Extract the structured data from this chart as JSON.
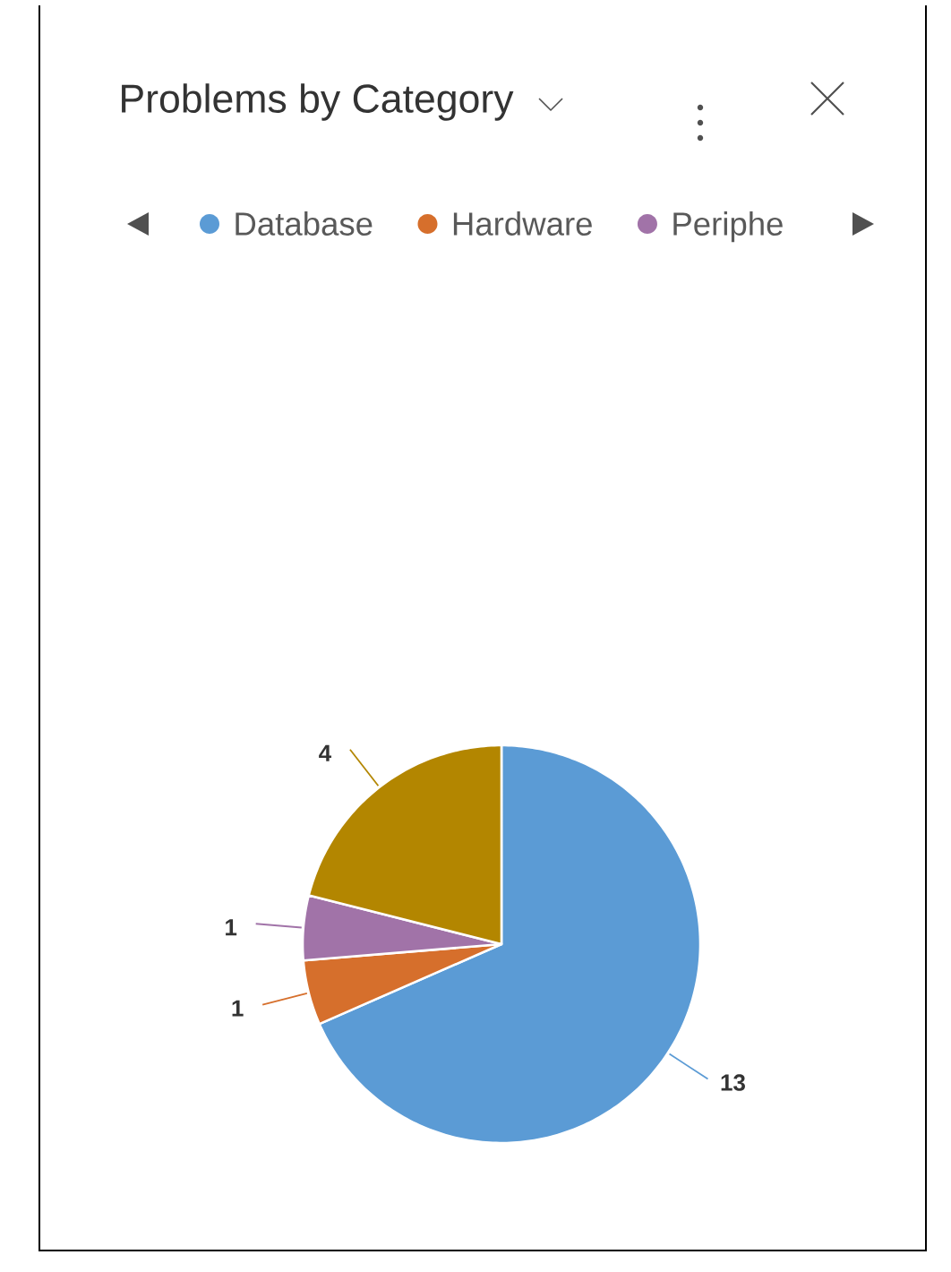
{
  "chart_data": {
    "type": "pie",
    "title": "Problems by Category",
    "categories": [
      "Database",
      "Hardware",
      "Periphe",
      null
    ],
    "values": [
      13,
      1,
      1,
      4
    ],
    "colors": [
      "#5B9BD5",
      "#D66F2C",
      "#A173A8",
      "#B38600"
    ],
    "legend": "top",
    "data_labels": true
  }
}
